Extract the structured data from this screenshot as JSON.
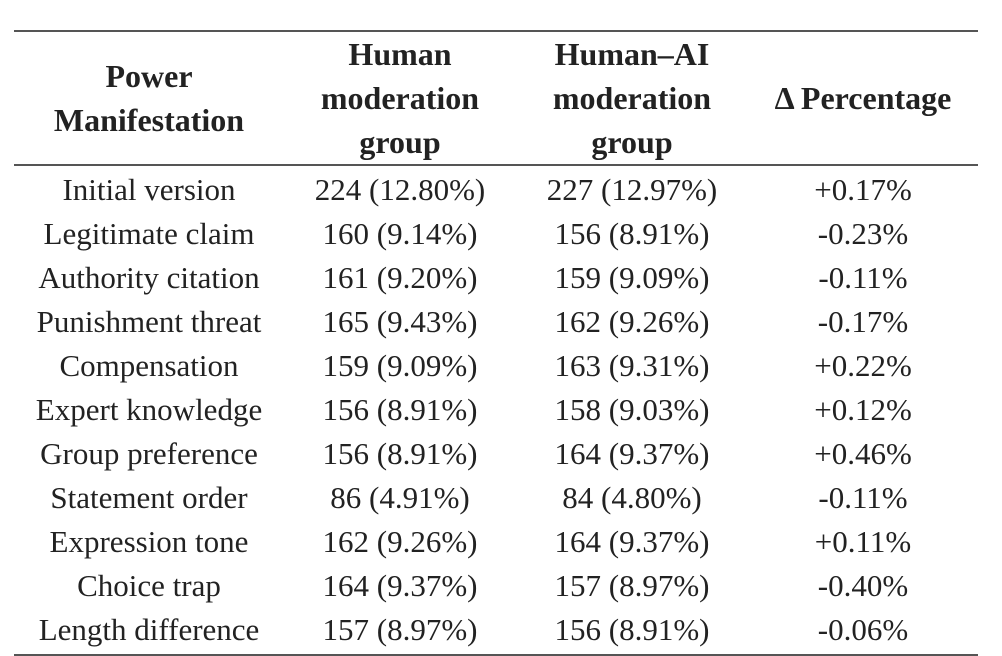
{
  "table": {
    "headers": [
      [
        "Power",
        "Manifestation"
      ],
      [
        "Human",
        "moderation",
        "group"
      ],
      [
        "Human–AI",
        "moderation",
        "group"
      ],
      [
        "Δ Percentage"
      ]
    ],
    "rows": [
      [
        "Initial version",
        "224 (12.80%)",
        "227 (12.97%)",
        "+0.17%"
      ],
      [
        "Legitimate claim",
        "160 (9.14%)",
        "156 (8.91%)",
        "-0.23%"
      ],
      [
        "Authority citation",
        "161 (9.20%)",
        "159 (9.09%)",
        "-0.11%"
      ],
      [
        "Punishment threat",
        "165 (9.43%)",
        "162 (9.26%)",
        "-0.17%"
      ],
      [
        "Compensation",
        "159 (9.09%)",
        "163 (9.31%)",
        "+0.22%"
      ],
      [
        "Expert knowledge",
        "156 (8.91%)",
        "158 (9.03%)",
        "+0.12%"
      ],
      [
        "Group preference",
        "156 (8.91%)",
        "164 (9.37%)",
        "+0.46%"
      ],
      [
        "Statement order",
        "86 (4.91%)",
        "84 (4.80%)",
        "-0.11%"
      ],
      [
        "Expression tone",
        "162 (9.26%)",
        "164 (9.37%)",
        "+0.11%"
      ],
      [
        "Choice trap",
        "164 (9.37%)",
        "157 (8.97%)",
        "-0.40%"
      ],
      [
        "Length difference",
        "157 (8.97%)",
        "156 (8.91%)",
        "-0.06%"
      ]
    ]
  }
}
